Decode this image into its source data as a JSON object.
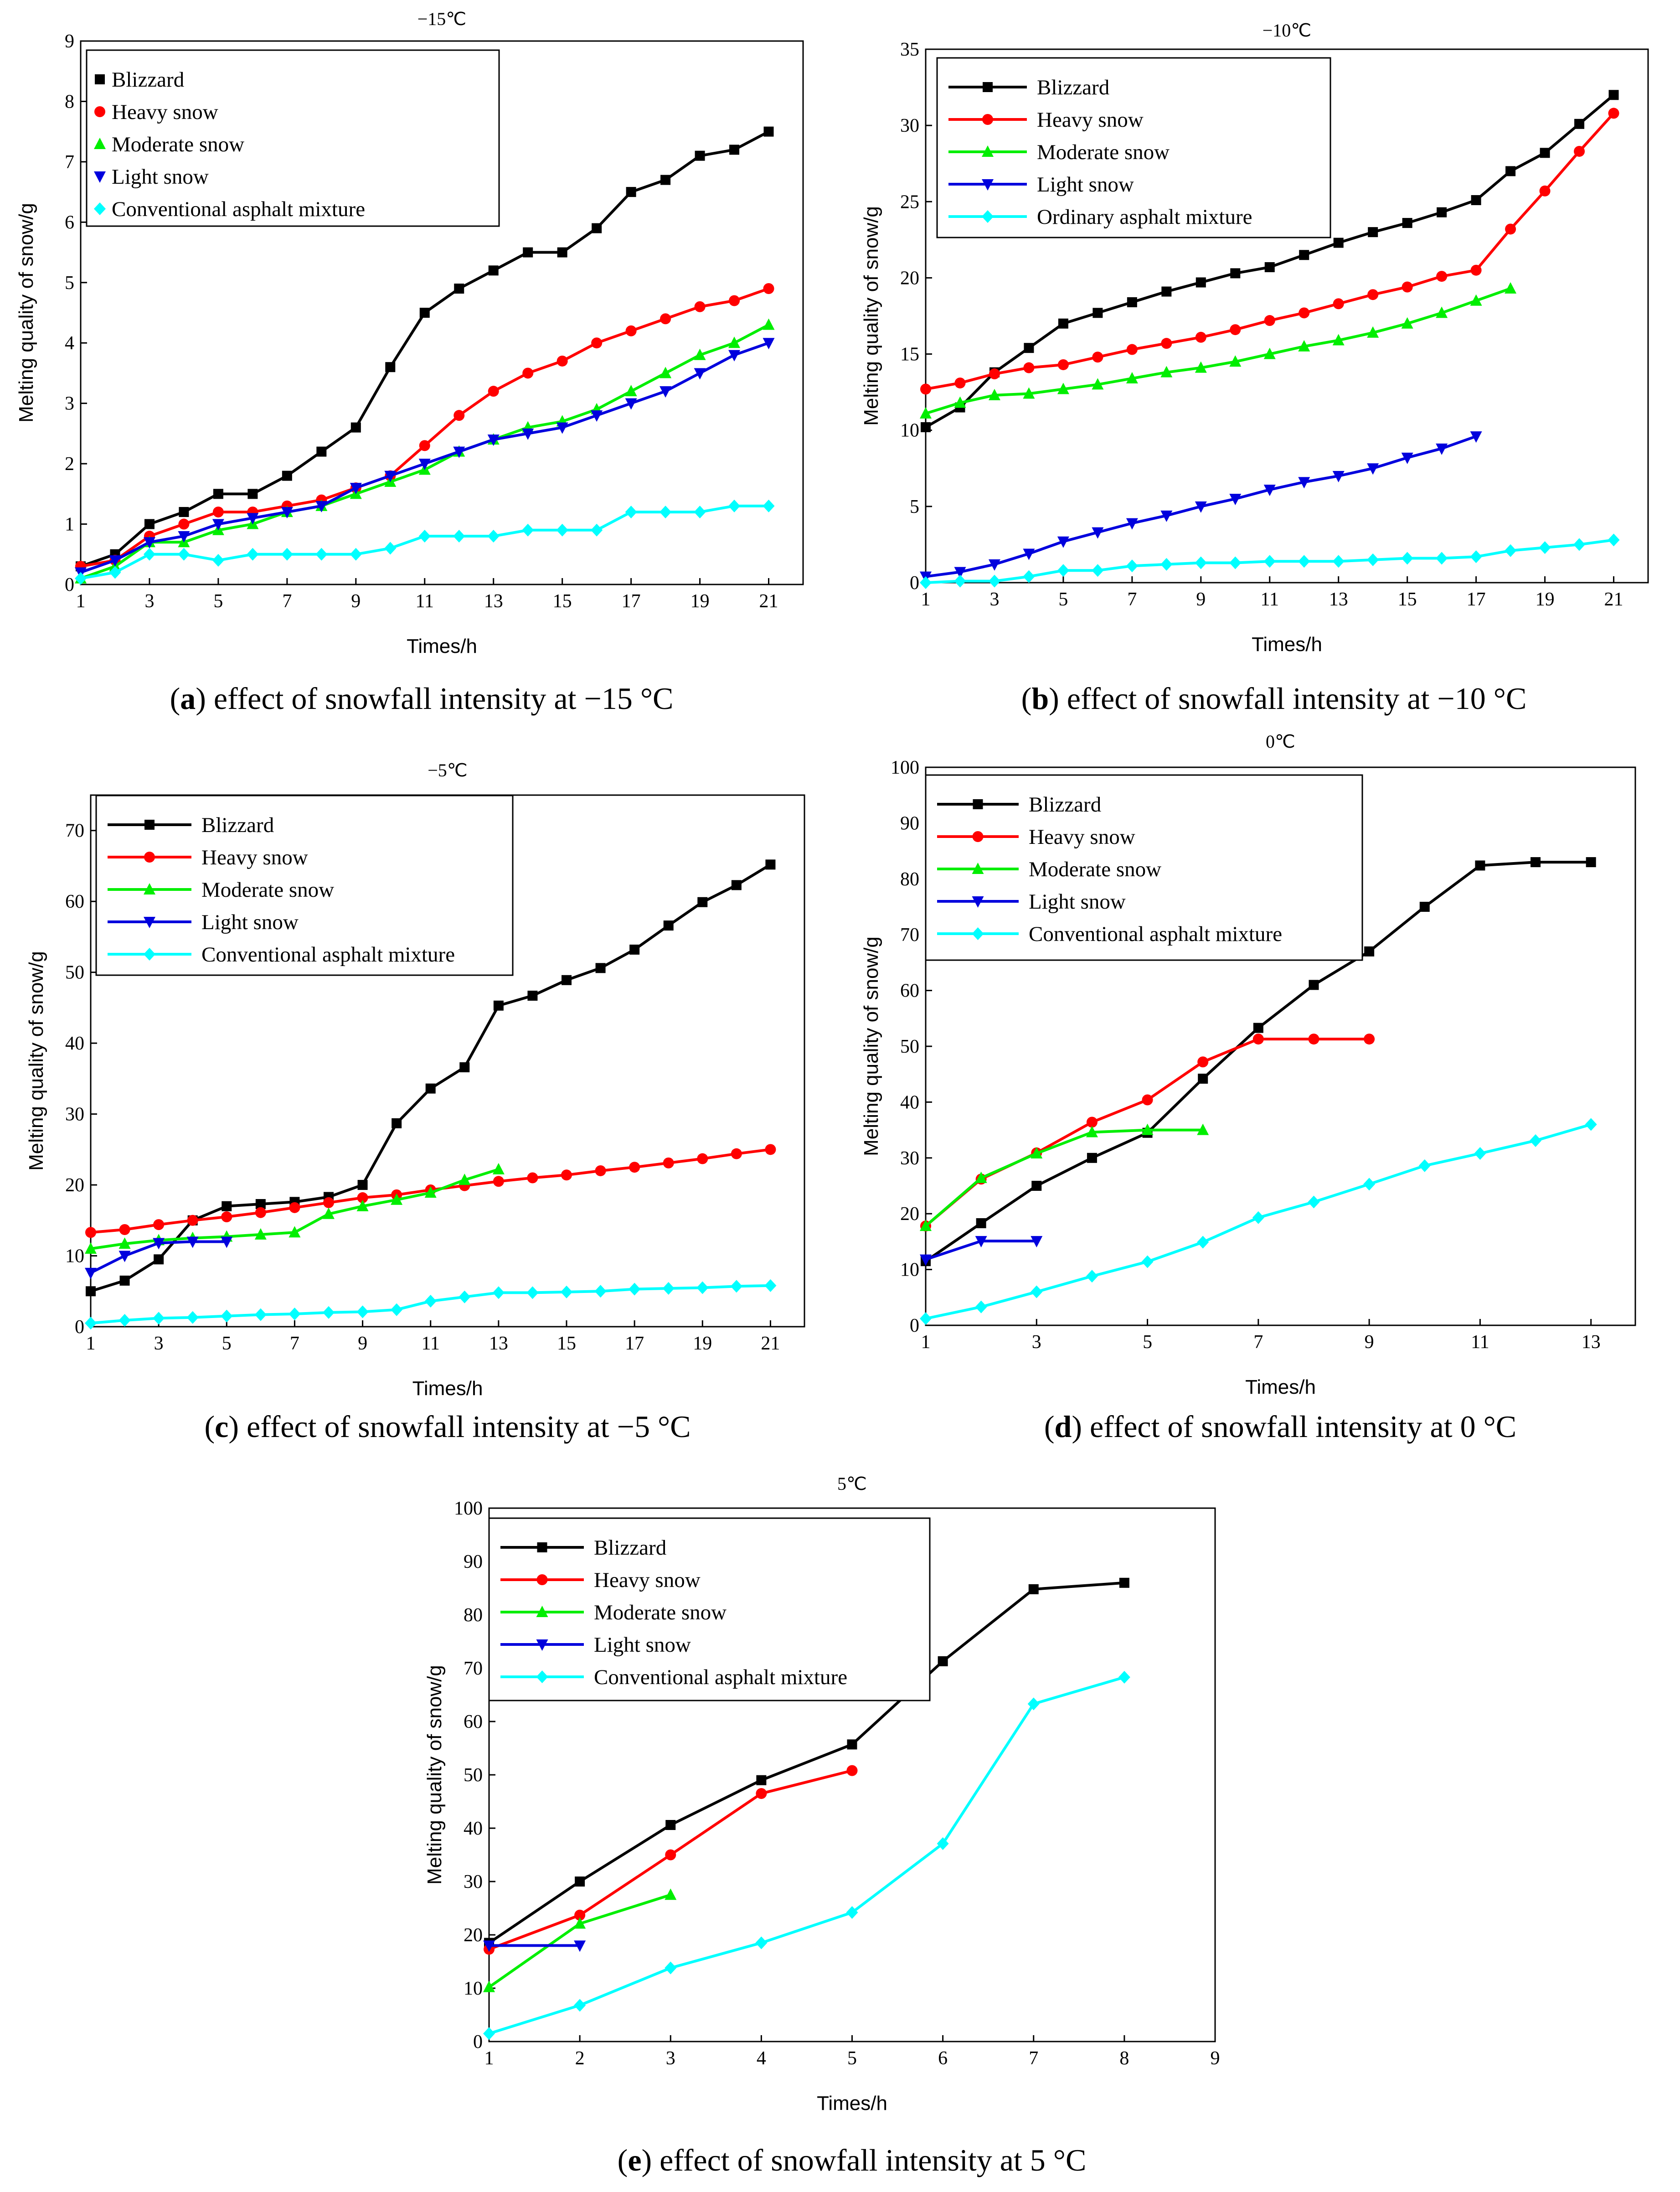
{
  "figure": {
    "panels": [
      {
        "id": "a",
        "caption": {
          "label": "a",
          "text": "effect of snowfall intensity at −15 °C"
        },
        "legend_labels": [
          "Blizzard",
          "Heavy snow",
          "Moderate snow",
          "Light snow",
          "Conventional asphalt mixture"
        ]
      },
      {
        "id": "b",
        "caption": {
          "label": "b",
          "text": "effect of snowfall intensity at −10 °C"
        },
        "legend_labels": [
          "Blizzard",
          "Heavy snow",
          "Moderate snow",
          "Light snow",
          "Ordinary asphalt mixture"
        ]
      },
      {
        "id": "c",
        "caption": {
          "label": "c",
          "text": "effect of snowfall intensity at −5 °C"
        },
        "legend_labels": [
          "Blizzard",
          "Heavy snow",
          "Moderate snow",
          "Light snow",
          "Conventional asphalt mixture"
        ]
      },
      {
        "id": "d",
        "caption": {
          "label": "d",
          "text": "effect of snowfall intensity at 0 °C"
        },
        "legend_labels": [
          "Blizzard",
          "Heavy snow",
          "Moderate snow",
          "Light snow",
          "Conventional asphalt mixture"
        ]
      },
      {
        "id": "e",
        "caption": {
          "label": "e",
          "text": "effect of snowfall intensity at 5 °C"
        },
        "legend_labels": [
          "Blizzard",
          "Heavy snow",
          "Moderate snow",
          "Light snow",
          "Conventional asphalt mixture"
        ]
      }
    ],
    "series_colors": {
      "Blizzard": "#000000",
      "Heavy snow": "#ff0000",
      "Moderate snow": "#00ee00",
      "Light snow": "#0000dd",
      "Asphalt": "#00ffff"
    },
    "series_markers": {
      "Blizzard": "square",
      "Heavy snow": "circle",
      "Moderate snow": "triangle-up",
      "Light snow": "triangle-down",
      "Asphalt": "diamond"
    }
  },
  "chart_data": [
    {
      "type": "line",
      "title": "−15℃",
      "xlabel": "Times/h",
      "ylabel": "Melting quality of snow/g",
      "xlim": [
        1,
        22
      ],
      "ylim": [
        0,
        9
      ],
      "xticks": [
        1,
        3,
        5,
        7,
        9,
        11,
        13,
        15,
        17,
        19,
        21
      ],
      "yticks": [
        0,
        1,
        2,
        3,
        4,
        5,
        6,
        7,
        8,
        9
      ],
      "legend": "top-left",
      "series": [
        {
          "name": "Blizzard",
          "x": [
            1,
            2,
            3,
            4,
            5,
            6,
            7,
            8,
            9,
            10,
            11,
            12,
            13,
            14,
            15,
            16,
            17,
            18,
            19,
            20,
            21
          ],
          "values": [
            0.3,
            0.5,
            1.0,
            1.2,
            1.5,
            1.5,
            1.8,
            2.2,
            2.6,
            3.6,
            4.5,
            4.9,
            5.2,
            5.5,
            5.5,
            5.9,
            6.5,
            6.7,
            7.1,
            7.2,
            7.5
          ]
        },
        {
          "name": "Heavy snow",
          "x": [
            1,
            2,
            3,
            4,
            5,
            6,
            7,
            8,
            9,
            10,
            11,
            12,
            13,
            14,
            15,
            16,
            17,
            18,
            19,
            20,
            21
          ],
          "values": [
            0.3,
            0.4,
            0.8,
            1.0,
            1.2,
            1.2,
            1.3,
            1.4,
            1.6,
            1.8,
            2.3,
            2.8,
            3.2,
            3.5,
            3.7,
            4.0,
            4.2,
            4.4,
            4.6,
            4.7,
            4.9
          ]
        },
        {
          "name": "Moderate snow",
          "x": [
            1,
            2,
            3,
            4,
            5,
            6,
            7,
            8,
            9,
            10,
            11,
            12,
            13,
            14,
            15,
            16,
            17,
            18,
            19,
            20,
            21
          ],
          "values": [
            0.1,
            0.3,
            0.7,
            0.7,
            0.9,
            1.0,
            1.2,
            1.3,
            1.5,
            1.7,
            1.9,
            2.2,
            2.4,
            2.6,
            2.7,
            2.9,
            3.2,
            3.5,
            3.8,
            4.0,
            4.3
          ]
        },
        {
          "name": "Light snow",
          "x": [
            1,
            2,
            3,
            4,
            5,
            6,
            7,
            8,
            9,
            10,
            11,
            12,
            13,
            14,
            15,
            16,
            17,
            18,
            19,
            20,
            21
          ],
          "values": [
            0.2,
            0.4,
            0.7,
            0.8,
            1.0,
            1.1,
            1.2,
            1.3,
            1.6,
            1.8,
            2.0,
            2.2,
            2.4,
            2.5,
            2.6,
            2.8,
            3.0,
            3.2,
            3.5,
            3.8,
            4.0
          ]
        },
        {
          "name": "Conventional asphalt mixture",
          "x": [
            1,
            2,
            3,
            4,
            5,
            6,
            7,
            8,
            9,
            10,
            11,
            12,
            13,
            14,
            15,
            16,
            17,
            18,
            19,
            20,
            21
          ],
          "values": [
            0.1,
            0.2,
            0.5,
            0.5,
            0.4,
            0.5,
            0.5,
            0.5,
            0.5,
            0.6,
            0.8,
            0.8,
            0.8,
            0.9,
            0.9,
            0.9,
            1.2,
            1.2,
            1.2,
            1.3,
            1.3
          ]
        }
      ]
    },
    {
      "type": "line",
      "title": "−10℃",
      "xlabel": "Times/h",
      "ylabel": "Melting quality of snow/g",
      "xlim": [
        1,
        22
      ],
      "ylim": [
        0,
        35
      ],
      "xticks": [
        1,
        3,
        5,
        7,
        9,
        11,
        13,
        15,
        17,
        19,
        21
      ],
      "yticks": [
        0,
        5,
        10,
        15,
        20,
        25,
        30,
        35
      ],
      "legend": "top-left",
      "series": [
        {
          "name": "Blizzard",
          "x": [
            1,
            2,
            3,
            4,
            5,
            6,
            7,
            8,
            9,
            10,
            11,
            12,
            13,
            14,
            15,
            16,
            17,
            18,
            19,
            20,
            21
          ],
          "values": [
            10.2,
            11.5,
            13.8,
            15.4,
            17.0,
            17.7,
            18.4,
            19.1,
            19.7,
            20.3,
            20.7,
            21.5,
            22.3,
            23.0,
            23.6,
            24.3,
            25.1,
            27.0,
            28.2,
            30.1,
            32.0
          ]
        },
        {
          "name": "Heavy snow",
          "x": [
            1,
            2,
            3,
            4,
            5,
            6,
            7,
            8,
            9,
            10,
            11,
            12,
            13,
            14,
            15,
            16,
            17,
            18,
            19,
            20,
            21
          ],
          "values": [
            12.7,
            13.1,
            13.7,
            14.1,
            14.3,
            14.8,
            15.3,
            15.7,
            16.1,
            16.6,
            17.2,
            17.7,
            18.3,
            18.9,
            19.4,
            20.1,
            20.5,
            23.2,
            25.7,
            28.3,
            30.8
          ]
        },
        {
          "name": "Moderate snow",
          "x": [
            1,
            2,
            3,
            4,
            5,
            6,
            7,
            8,
            9,
            10,
            11,
            12,
            13,
            14,
            15,
            16,
            17,
            18
          ],
          "values": [
            11.1,
            11.8,
            12.3,
            12.4,
            12.7,
            13.0,
            13.4,
            13.8,
            14.1,
            14.5,
            15.0,
            15.5,
            15.9,
            16.4,
            17.0,
            17.7,
            18.5,
            19.3
          ]
        },
        {
          "name": "Light snow",
          "x": [
            1,
            2,
            3,
            4,
            5,
            6,
            7,
            8,
            9,
            10,
            11,
            12,
            13,
            14,
            15,
            16,
            17
          ],
          "values": [
            0.4,
            0.7,
            1.2,
            1.9,
            2.7,
            3.3,
            3.9,
            4.4,
            5.0,
            5.5,
            6.1,
            6.6,
            7.0,
            7.5,
            8.2,
            8.8,
            9.6
          ]
        },
        {
          "name": "Ordinary asphalt mixture",
          "x": [
            1,
            2,
            3,
            4,
            5,
            6,
            7,
            8,
            9,
            10,
            11,
            12,
            13,
            14,
            15,
            16,
            17,
            18,
            19,
            20,
            21
          ],
          "values": [
            0.0,
            0.1,
            0.1,
            0.4,
            0.8,
            0.8,
            1.1,
            1.2,
            1.3,
            1.3,
            1.4,
            1.4,
            1.4,
            1.5,
            1.6,
            1.6,
            1.7,
            2.1,
            2.3,
            2.5,
            2.8
          ]
        }
      ]
    },
    {
      "type": "line",
      "title": "−5℃",
      "xlabel": "Times/h",
      "ylabel": "Melting quality of snow/g",
      "xlim": [
        1,
        22
      ],
      "ylim": [
        0,
        75
      ],
      "xticks": [
        1,
        3,
        5,
        7,
        9,
        11,
        13,
        15,
        17,
        19,
        21
      ],
      "yticks": [
        0,
        10,
        20,
        30,
        40,
        50,
        60,
        70
      ],
      "legend": "top-left",
      "series": [
        {
          "name": "Blizzard",
          "x": [
            1,
            2,
            3,
            4,
            5,
            6,
            7,
            8,
            9,
            10,
            11,
            12,
            13,
            14,
            15,
            16,
            17,
            18,
            19,
            20,
            21
          ],
          "values": [
            5.0,
            6.5,
            9.5,
            15.0,
            17.0,
            17.3,
            17.6,
            18.3,
            20.0,
            28.7,
            33.6,
            36.6,
            45.3,
            46.7,
            48.9,
            50.6,
            53.2,
            56.6,
            59.9,
            62.3,
            65.2
          ]
        },
        {
          "name": "Heavy snow",
          "x": [
            1,
            2,
            3,
            4,
            5,
            6,
            7,
            8,
            9,
            10,
            11,
            12,
            13,
            14,
            15,
            16,
            17,
            18,
            19,
            20,
            21
          ],
          "values": [
            13.3,
            13.7,
            14.4,
            15.0,
            15.5,
            16.1,
            16.8,
            17.5,
            18.2,
            18.6,
            19.3,
            19.9,
            20.5,
            21.0,
            21.4,
            22.0,
            22.5,
            23.1,
            23.7,
            24.4,
            25.0
          ]
        },
        {
          "name": "Moderate snow",
          "x": [
            1,
            2,
            3,
            4,
            5,
            6,
            7,
            8,
            9,
            10,
            11,
            12,
            13
          ],
          "values": [
            11.0,
            11.7,
            12.2,
            12.5,
            12.7,
            13.0,
            13.3,
            15.9,
            17.0,
            17.9,
            18.9,
            20.7,
            22.2
          ]
        },
        {
          "name": "Light snow",
          "x": [
            1,
            2,
            3,
            4,
            5
          ],
          "values": [
            7.6,
            10.0,
            11.8,
            12.0,
            12.0
          ]
        },
        {
          "name": "Conventional asphalt mixture",
          "x": [
            1,
            2,
            3,
            4,
            5,
            6,
            7,
            8,
            9,
            10,
            11,
            12,
            13,
            14,
            15,
            16,
            17,
            18,
            19,
            20,
            21
          ],
          "values": [
            0.5,
            0.9,
            1.2,
            1.3,
            1.5,
            1.7,
            1.8,
            2.0,
            2.1,
            2.4,
            3.6,
            4.2,
            4.8,
            4.8,
            4.9,
            5.0,
            5.3,
            5.4,
            5.5,
            5.7,
            5.8
          ]
        }
      ]
    },
    {
      "type": "line",
      "title": "0℃",
      "xlabel": "Times/h",
      "ylabel": "Melting quality of snow/g",
      "xlim": [
        1,
        13.8
      ],
      "ylim": [
        0,
        100
      ],
      "xticks": [
        1,
        3,
        5,
        7,
        9,
        11,
        13
      ],
      "yticks": [
        0,
        10,
        20,
        30,
        40,
        50,
        60,
        70,
        80,
        90,
        100
      ],
      "legend": "top-left",
      "series": [
        {
          "name": "Blizzard",
          "x": [
            1,
            2,
            3,
            4,
            5,
            6,
            7,
            8,
            9,
            10,
            11,
            12,
            13
          ],
          "values": [
            11.5,
            18.3,
            25.0,
            30.0,
            34.5,
            44.2,
            53.3,
            61.0,
            67.0,
            75.0,
            82.4,
            83.0,
            83.0
          ]
        },
        {
          "name": "Heavy snow",
          "x": [
            1,
            2,
            3,
            4,
            5,
            6,
            7,
            8,
            9
          ],
          "values": [
            17.8,
            26.2,
            30.9,
            36.4,
            40.4,
            47.2,
            51.3,
            51.3,
            51.3
          ]
        },
        {
          "name": "Moderate snow",
          "x": [
            1,
            2,
            3,
            4,
            5,
            6
          ],
          "values": [
            17.8,
            26.4,
            30.8,
            34.6,
            35.0,
            35.0
          ]
        },
        {
          "name": "Light snow",
          "x": [
            1,
            2,
            3
          ],
          "values": [
            11.8,
            15.1,
            15.1
          ]
        },
        {
          "name": "Conventional asphalt mixture",
          "x": [
            1,
            2,
            3,
            4,
            5,
            6,
            7,
            8,
            9,
            10,
            11,
            12,
            13
          ],
          "values": [
            1.2,
            3.3,
            6.0,
            8.8,
            11.4,
            14.9,
            19.3,
            22.1,
            25.3,
            28.6,
            30.8,
            33.1,
            36.0
          ]
        }
      ]
    },
    {
      "type": "line",
      "title": "5℃",
      "xlabel": "Times/h",
      "ylabel": "Melting quality of snow/g",
      "xlim": [
        1,
        9
      ],
      "ylim": [
        0,
        100
      ],
      "xticks": [
        1,
        2,
        3,
        4,
        5,
        6,
        7,
        8,
        9
      ],
      "yticks": [
        0,
        10,
        20,
        30,
        40,
        50,
        60,
        70,
        80,
        90,
        100
      ],
      "legend": "top-left",
      "series": [
        {
          "name": "Blizzard",
          "x": [
            1,
            2,
            3,
            4,
            5,
            6,
            7,
            8
          ],
          "values": [
            18.5,
            30.0,
            40.6,
            49.0,
            55.7,
            71.3,
            84.8,
            86.0
          ]
        },
        {
          "name": "Heavy snow",
          "x": [
            1,
            2,
            3,
            4,
            5
          ],
          "values": [
            17.3,
            23.7,
            35.0,
            46.5,
            50.8
          ]
        },
        {
          "name": "Moderate snow",
          "x": [
            1,
            2,
            3
          ],
          "values": [
            10.2,
            22.1,
            27.5
          ]
        },
        {
          "name": "Light snow",
          "x": [
            1,
            2
          ],
          "values": [
            18.0,
            18.0
          ]
        },
        {
          "name": "Conventional asphalt mixture",
          "x": [
            1,
            2,
            3,
            4,
            5,
            6,
            7,
            8
          ],
          "values": [
            1.5,
            6.8,
            13.8,
            18.5,
            24.2,
            37.1,
            63.3,
            68.3
          ]
        }
      ]
    }
  ]
}
